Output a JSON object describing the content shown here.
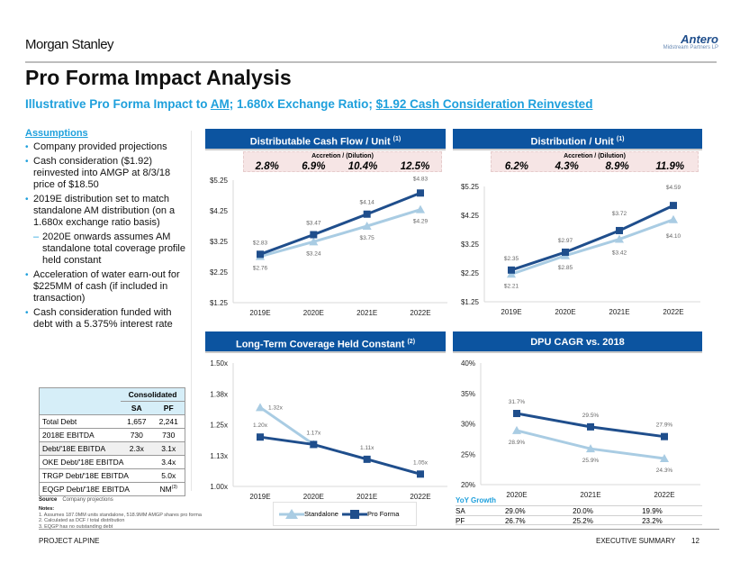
{
  "header": {
    "brand": "Morgan Stanley",
    "client_logo_main": "Antero",
    "client_logo_sub": "Midstream Partners LP",
    "title": "Pro Forma Impact Analysis",
    "subtitle_pre": "Illustrative Pro Forma Impact to ",
    "subtitle_am": "AM",
    "subtitle_mid": "; 1.680x Exchange Ratio; ",
    "subtitle_cash": "$1.92 Cash Consideration Reinvested"
  },
  "assumptions": {
    "heading": "Assumptions",
    "bullets": [
      "Company provided projections",
      "Cash consideration ($1.92) reinvested into AMGP at 8/3/18 price of $18.50",
      "2019E distribution set to match standalone AM distribution (on a 1.680x exchange ratio basis)",
      "2020E onwards assumes AM standalone total coverage profile held constant",
      "Acceleration of water earn-out for $225MM of cash (if included in transaction)",
      "Cash consideration funded with debt with a 5.375% interest rate"
    ]
  },
  "debt_table": {
    "group_header": "Consolidated",
    "col_sa": "SA",
    "col_pf": "PF",
    "rows": [
      {
        "label": "Total Debt",
        "sa": "1,657",
        "pf": "2,241"
      },
      {
        "label": "2018E EBITDA",
        "sa": "730",
        "pf": "730"
      },
      {
        "label": "Debt/'18E EBITDA",
        "sa": "2.3x",
        "pf": "3.1x"
      },
      {
        "label": "OKE Debt/'18E EBITDA",
        "sa": "",
        "pf": "3.4x"
      },
      {
        "label": "TRGP Debt/'18E EBITDA",
        "sa": "",
        "pf": "5.0x"
      },
      {
        "label": "EQGP Debt/'18E EBITDA",
        "sa": "",
        "pf": "NM",
        "pf_note": "(3)"
      }
    ]
  },
  "source": {
    "label": "Source",
    "text": "Company projections"
  },
  "notes": {
    "label": "Notes:",
    "items": [
      "1.  Assumes 187.0MM units standalone, 518.9MM AMGP shares pro forma",
      "2.  Calculated as DCF / total distribution",
      "3.  EQGP has no outstanding debt"
    ]
  },
  "legend": {
    "standalone": "Standalone",
    "pro_forma": "Pro Forma"
  },
  "yoy": {
    "heading": "YoY Growth",
    "rows": [
      {
        "label": "SA",
        "values": [
          "29.0%",
          "20.0%",
          "19.9%"
        ]
      },
      {
        "label": "PF",
        "values": [
          "26.7%",
          "25.2%",
          "23.2%"
        ]
      }
    ]
  },
  "footer": {
    "project": "PROJECT ALPINE",
    "section": "EXECUTIVE SUMMARY",
    "page": "12"
  },
  "colors": {
    "standalone": "#a9cce3",
    "pro_forma": "#1f4e8c",
    "header_blue": "#0c54a0",
    "accent": "#1fa0dc"
  },
  "chart_data": [
    {
      "type": "line",
      "title": "Distributable Cash Flow / Unit",
      "title_note": "(1)",
      "accretion_label": "Accretion / (Dilution)",
      "accretion": [
        "2.8%",
        "6.9%",
        "10.4%",
        "12.5%"
      ],
      "categories": [
        "2019E",
        "2020E",
        "2021E",
        "2022E"
      ],
      "yticks": [
        "$1.25",
        "$2.25",
        "$3.25",
        "$4.25",
        "$5.25"
      ],
      "ylim": [
        1.25,
        5.25
      ],
      "series": [
        {
          "name": "Standalone",
          "values": [
            2.76,
            3.24,
            3.75,
            4.29
          ],
          "labels": [
            "$2.76",
            "$3.24",
            "$3.75",
            "$4.29"
          ]
        },
        {
          "name": "Pro Forma",
          "values": [
            2.83,
            3.47,
            4.14,
            4.83
          ],
          "labels": [
            "$2.83",
            "$3.47",
            "$4.14",
            "$4.83"
          ]
        }
      ]
    },
    {
      "type": "line",
      "title": "Distribution / Unit",
      "title_note": "(1)",
      "accretion_label": "Accretion / (Dilution)",
      "accretion": [
        "6.2%",
        "4.3%",
        "8.9%",
        "11.9%"
      ],
      "categories": [
        "2019E",
        "2020E",
        "2021E",
        "2022E"
      ],
      "yticks": [
        "$1.25",
        "$2.25",
        "$3.25",
        "$4.25",
        "$5.25"
      ],
      "ylim": [
        1.25,
        5.25
      ],
      "series": [
        {
          "name": "Standalone",
          "values": [
            2.21,
            2.85,
            3.42,
            4.1
          ],
          "labels": [
            "$2.21",
            "$2.85",
            "$3.42",
            "$4.10"
          ]
        },
        {
          "name": "Pro Forma",
          "values": [
            2.35,
            2.97,
            3.72,
            4.59
          ],
          "labels": [
            "$2.35",
            "$2.97",
            "$3.72",
            "$4.59"
          ]
        }
      ]
    },
    {
      "type": "line",
      "title": "Long-Term Coverage Held Constant",
      "title_note": "(2)",
      "categories": [
        "2019E",
        "2020E",
        "2021E",
        "2022E"
      ],
      "yticks": [
        "1.00x",
        "1.13x",
        "1.25x",
        "1.38x",
        "1.50x"
      ],
      "ylim": [
        1.0,
        1.5
      ],
      "series": [
        {
          "name": "Standalone",
          "values": [
            1.32,
            1.17,
            null,
            null
          ],
          "labels": [
            "1.32x",
            "",
            "",
            ""
          ]
        },
        {
          "name": "Pro Forma",
          "values": [
            1.2,
            1.17,
            1.11,
            1.05
          ],
          "labels": [
            "1.20x",
            "1.17x",
            "1.11x",
            "1.05x"
          ]
        }
      ]
    },
    {
      "type": "line",
      "title": "DPU CAGR vs. 2018",
      "title_note": "",
      "categories": [
        "2020E",
        "2021E",
        "2022E"
      ],
      "yticks": [
        "20%",
        "25%",
        "30%",
        "35%",
        "40%"
      ],
      "ylim": [
        20,
        40
      ],
      "series": [
        {
          "name": "Standalone",
          "values": [
            28.9,
            25.9,
            24.3
          ],
          "labels": [
            "28.9%",
            "25.9%",
            "24.3%"
          ]
        },
        {
          "name": "Pro Forma",
          "values": [
            31.7,
            29.5,
            27.9
          ],
          "labels": [
            "31.7%",
            "29.5%",
            "27.9%"
          ]
        }
      ]
    }
  ]
}
